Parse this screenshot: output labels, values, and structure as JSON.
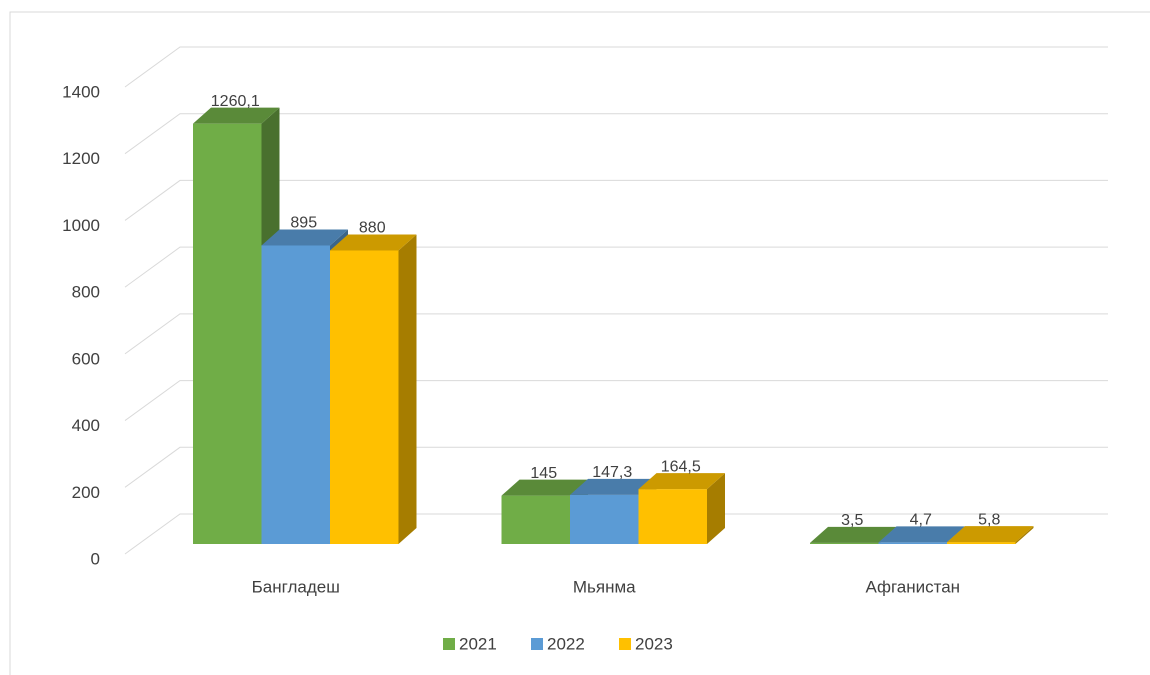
{
  "chart_data": {
    "type": "bar3d",
    "categories": [
      "Бангладеш",
      "Мьянма",
      "Афганистан"
    ],
    "series": [
      {
        "name": "2021",
        "color": "#70ad47",
        "values": [
          1260.1,
          145,
          3.5
        ],
        "value_labels": [
          "1260,1",
          "145",
          "3,5"
        ]
      },
      {
        "name": "2022",
        "color": "#5b9bd5",
        "values": [
          895,
          147.3,
          4.7
        ],
        "value_labels": [
          "895",
          "147,3",
          "4,7"
        ]
      },
      {
        "name": "2023",
        "color": "#ffc000",
        "values": [
          880,
          164.5,
          5.8
        ],
        "value_labels": [
          "880",
          "164,5",
          "5,8"
        ]
      }
    ],
    "ylim": [
      0,
      1400
    ],
    "yticks": [
      0,
      200,
      400,
      600,
      800,
      1000,
      1200,
      1400
    ],
    "grid": true,
    "legend": "bottom"
  }
}
